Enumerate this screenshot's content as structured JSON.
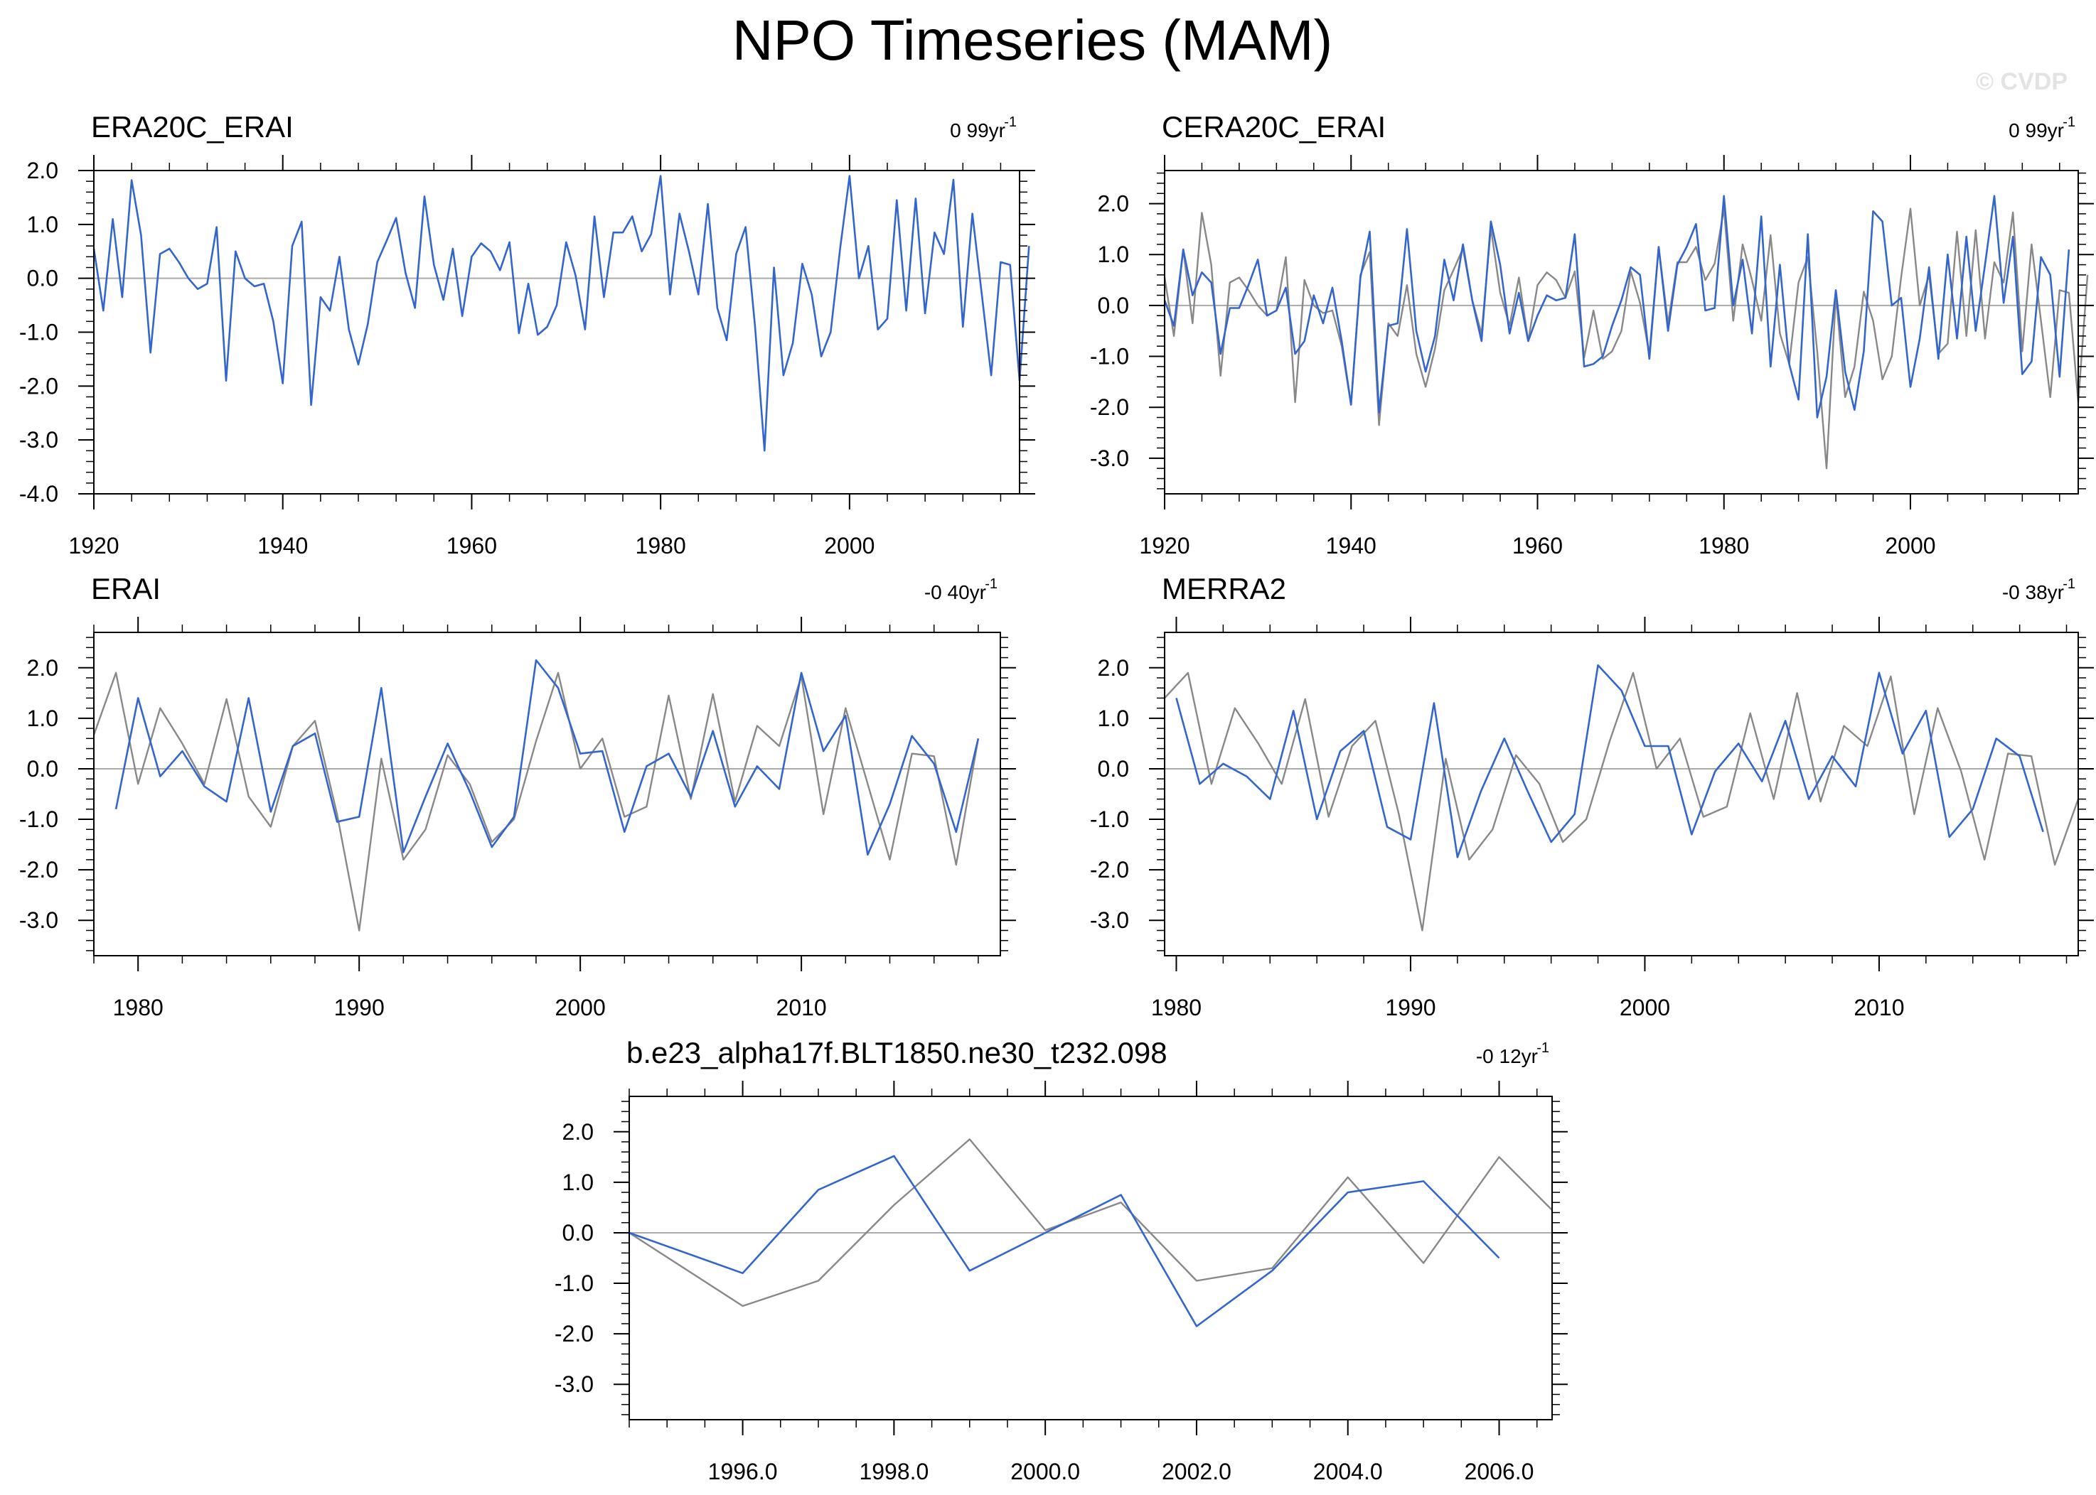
{
  "title": "NPO Timeseries (MAM)",
  "watermark": "© CVDP",
  "colors": {
    "model": "#3366cc",
    "obs": "#888888",
    "axis": "#000000",
    "zero_line": "#aaaaaa"
  },
  "chart_data": [
    {
      "type": "line",
      "title": "ERA20C_ERAI",
      "trend": "0 99yr",
      "trend_exp": "-1",
      "xlim": [
        1920,
        2018
      ],
      "ylim": [
        -4.0,
        2.0
      ],
      "xticks": [
        1920,
        1940,
        1960,
        1980,
        2000
      ],
      "xtick_labels": [
        "1920",
        "1940",
        "1960",
        "1980",
        "2000"
      ],
      "yticks": [
        -4.0,
        -3.0,
        -2.0,
        -1.0,
        0.0,
        1.0,
        2.0
      ],
      "ytick_labels": [
        "-4.0",
        "-3.0",
        "-2.0",
        "-1.0",
        "0.0",
        "1.0",
        "2.0"
      ],
      "series": [
        {
          "role": "model",
          "x0": 1920,
          "values": [
            0.55,
            -0.6,
            1.1,
            -0.35,
            1.82,
            0.8,
            -1.38,
            0.45,
            0.55,
            0.3,
            0.0,
            -0.2,
            -0.1,
            0.95,
            -1.9,
            0.5,
            0.0,
            -0.15,
            -0.1,
            -0.8,
            -1.95,
            0.6,
            1.05,
            -2.35,
            -0.35,
            -0.6,
            0.4,
            -0.95,
            -1.6,
            -0.85,
            0.3,
            0.7,
            1.12,
            0.1,
            -0.55,
            1.52,
            0.25,
            -0.4,
            0.55,
            -0.7,
            0.4,
            0.65,
            0.5,
            0.15,
            0.67,
            -1.02,
            -0.1,
            -1.05,
            -0.9,
            -0.5,
            0.67,
            0.05,
            -0.95,
            1.15,
            -0.35,
            0.85,
            0.85,
            1.15,
            0.5,
            0.82,
            1.9,
            -0.3,
            1.2,
            0.5,
            -0.3,
            1.38,
            -0.55,
            -1.15,
            0.45,
            0.95,
            -0.9,
            -3.2,
            0.2,
            -1.8,
            -1.2,
            0.27,
            -0.3,
            -1.45,
            -1.0,
            0.55,
            1.9,
            0.0,
            0.6,
            -0.95,
            -0.75,
            1.45,
            -0.6,
            1.48,
            -0.65,
            0.85,
            0.45,
            1.83,
            -0.9,
            1.2,
            -0.3,
            -1.8,
            0.3,
            0.25,
            -1.9,
            0.6
          ]
        }
      ]
    },
    {
      "type": "line",
      "title": "CERA20C_ERAI",
      "trend": "0 99yr",
      "trend_exp": "-1",
      "xlim": [
        1920,
        2018
      ],
      "ylim": [
        -3.7,
        2.65
      ],
      "xticks": [
        1920,
        1940,
        1960,
        1980,
        2000
      ],
      "xtick_labels": [
        "1920",
        "1940",
        "1960",
        "1980",
        "2000"
      ],
      "yticks": [
        -3.0,
        -2.0,
        -1.0,
        0.0,
        1.0,
        2.0
      ],
      "ytick_labels": [
        "-3.0",
        "-2.0",
        "-1.0",
        "0.0",
        "1.0",
        "2.0"
      ],
      "series": [
        {
          "role": "obs",
          "x0": 1920,
          "values": [
            0.55,
            -0.6,
            1.1,
            -0.35,
            1.82,
            0.8,
            -1.38,
            0.45,
            0.55,
            0.3,
            0.0,
            -0.2,
            -0.1,
            0.95,
            -1.9,
            0.5,
            0.0,
            -0.15,
            -0.1,
            -0.8,
            -1.95,
            0.6,
            1.05,
            -2.35,
            -0.35,
            -0.6,
            0.4,
            -0.95,
            -1.6,
            -0.85,
            0.3,
            0.7,
            1.12,
            0.1,
            -0.55,
            1.52,
            0.25,
            -0.4,
            0.55,
            -0.7,
            0.4,
            0.65,
            0.5,
            0.15,
            0.67,
            -1.02,
            -0.1,
            -1.05,
            -0.9,
            -0.5,
            0.67,
            0.05,
            -0.95,
            1.15,
            -0.35,
            0.85,
            0.85,
            1.15,
            0.5,
            0.82,
            1.9,
            -0.3,
            1.2,
            0.5,
            -0.3,
            1.38,
            -0.55,
            -1.15,
            0.45,
            0.95,
            -0.9,
            -3.2,
            0.2,
            -1.8,
            -1.2,
            0.27,
            -0.3,
            -1.45,
            -1.0,
            0.55,
            1.9,
            0.0,
            0.6,
            -0.95,
            -0.75,
            1.45,
            -0.6,
            1.48,
            -0.65,
            0.85,
            0.45,
            1.83,
            -0.9,
            1.2,
            -0.3,
            -1.8,
            0.3,
            0.25,
            -1.9,
            0.6
          ]
        },
        {
          "role": "model",
          "x0": 1920,
          "values": [
            0.1,
            -0.4,
            1.1,
            0.2,
            0.65,
            0.45,
            -0.95,
            -0.05,
            -0.05,
            0.4,
            0.9,
            -0.2,
            -0.1,
            0.35,
            -0.95,
            -0.7,
            0.2,
            -0.35,
            0.35,
            -0.7,
            -1.95,
            0.55,
            1.45,
            -2.1,
            -0.4,
            -0.35,
            1.5,
            -0.5,
            -1.3,
            -0.6,
            0.9,
            0.1,
            1.2,
            0.1,
            -0.7,
            1.65,
            0.8,
            -0.55,
            0.25,
            -0.7,
            -0.2,
            0.2,
            0.1,
            0.15,
            1.4,
            -1.2,
            -1.15,
            -1.0,
            -0.4,
            0.1,
            0.75,
            0.6,
            -1.05,
            1.15,
            -0.5,
            0.8,
            1.15,
            1.6,
            -0.1,
            -0.05,
            2.15,
            0.0,
            0.9,
            -0.55,
            1.75,
            -1.2,
            0.8,
            -1.15,
            -1.85,
            1.4,
            -2.2,
            -1.4,
            0.3,
            -1.3,
            -2.05,
            -0.9,
            1.85,
            1.65,
            0.0,
            0.15,
            -1.6,
            -0.65,
            0.75,
            -1.05,
            1.0,
            -0.65,
            1.35,
            -0.5,
            0.8,
            2.15,
            0.05,
            1.35,
            -1.35,
            -1.1,
            0.95,
            0.6,
            -1.4,
            1.1
          ]
        }
      ]
    },
    {
      "type": "line",
      "title": "ERAI",
      "trend": "-0 40yr",
      "trend_exp": "-1",
      "xlim": [
        1978,
        2019
      ],
      "ylim": [
        -3.7,
        2.7
      ],
      "xticks": [
        1980,
        1990,
        2000,
        2010
      ],
      "xtick_labels": [
        "1980",
        "1990",
        "2000",
        "2010"
      ],
      "yticks": [
        -3.0,
        -2.0,
        -1.0,
        0.0,
        1.0,
        2.0
      ],
      "ytick_labels": [
        "-3.0",
        "-2.0",
        "-1.0",
        "0.0",
        "1.0",
        "2.0"
      ],
      "series": [
        {
          "role": "obs",
          "x0": 1978,
          "values": [
            0.67,
            1.9,
            -0.3,
            1.2,
            0.5,
            -0.3,
            1.38,
            -0.55,
            -1.15,
            0.45,
            0.95,
            -0.9,
            -3.2,
            0.2,
            -1.8,
            -1.2,
            0.27,
            -0.3,
            -1.45,
            -1.0,
            0.55,
            1.9,
            0.0,
            0.6,
            -0.95,
            -0.75,
            1.45,
            -0.6,
            1.48,
            -0.65,
            0.85,
            0.45,
            1.83,
            -0.9,
            1.2,
            -0.3,
            -1.8,
            0.3,
            0.25,
            -1.9,
            0.6
          ],
          "x_start": 1978.0,
          "x_first_label": 1978.5
        },
        {
          "role": "model",
          "x0": 1979,
          "values": [
            -0.8,
            1.4,
            -0.15,
            0.35,
            -0.35,
            -0.65,
            1.4,
            -0.85,
            0.45,
            0.7,
            -1.05,
            -0.95,
            1.6,
            -1.65,
            -0.55,
            0.5,
            -0.45,
            -1.55,
            -0.95,
            2.15,
            1.6,
            0.3,
            0.35,
            -1.25,
            0.05,
            0.3,
            -0.55,
            0.75,
            -0.75,
            0.05,
            -0.4,
            1.9,
            0.35,
            1.05,
            -1.7,
            -0.7,
            0.65,
            0.1,
            -1.25,
            0.6
          ]
        }
      ]
    },
    {
      "type": "line",
      "title": "MERRA2",
      "trend": "-0 38yr",
      "trend_exp": "-1",
      "xlim": [
        1979.5,
        2018.5
      ],
      "ylim": [
        -3.7,
        2.7
      ],
      "xticks": [
        1980,
        1990,
        2000,
        2010
      ],
      "xtick_labels": [
        "1980",
        "1990",
        "2000",
        "2010"
      ],
      "yticks": [
        -3.0,
        -2.0,
        -1.0,
        0.0,
        1.0,
        2.0
      ],
      "ytick_labels": [
        "-3.0",
        "-2.0",
        "-1.0",
        "0.0",
        "1.0",
        "2.0"
      ],
      "series": [
        {
          "role": "obs",
          "x0": 1979.5,
          "values": [
            1.4,
            1.9,
            -0.3,
            1.2,
            0.5,
            -0.3,
            1.38,
            -0.95,
            0.45,
            0.95,
            -0.9,
            -3.2,
            0.2,
            -1.8,
            -1.2,
            0.27,
            -0.3,
            -1.45,
            -1.0,
            0.55,
            1.9,
            0.0,
            0.6,
            -0.95,
            -0.75,
            1.1,
            -0.6,
            1.5,
            -0.65,
            0.85,
            0.45,
            1.83,
            -0.9,
            1.2,
            -0.05,
            -1.8,
            0.3,
            0.25,
            -1.9,
            -0.6
          ]
        },
        {
          "role": "model",
          "x0": 1980,
          "values": [
            1.4,
            -0.3,
            0.1,
            -0.15,
            -0.6,
            1.15,
            -1.0,
            0.35,
            0.75,
            -1.15,
            -1.4,
            1.3,
            -1.75,
            -0.45,
            0.6,
            -0.45,
            -1.45,
            -0.9,
            2.05,
            1.55,
            0.45,
            0.45,
            -1.3,
            -0.05,
            0.5,
            -0.25,
            0.95,
            -0.6,
            0.25,
            -0.35,
            1.9,
            0.3,
            1.15,
            -1.35,
            -0.8,
            0.6,
            0.25,
            -1.25
          ]
        }
      ]
    },
    {
      "type": "line",
      "title": "b.e23_alpha17f.BLT1850.ne30_t232.098",
      "trend": "-0 12yr",
      "trend_exp": "-1",
      "xlim": [
        1994.5,
        2006.7
      ],
      "ylim": [
        -3.7,
        2.7
      ],
      "xticks": [
        1996,
        1998,
        2000,
        2002,
        2004,
        2006
      ],
      "xtick_labels": [
        "1996.0",
        "1998.0",
        "2000.0",
        "2002.0",
        "2004.0",
        "2006.0"
      ],
      "yticks": [
        -3.0,
        -2.0,
        -1.0,
        0.0,
        1.0,
        2.0
      ],
      "ytick_labels": [
        "-3.0",
        "-2.0",
        "-1.0",
        "0.0",
        "1.0",
        "2.0"
      ],
      "series": [
        {
          "role": "obs",
          "x0": 1994.5,
          "points": [
            [
              1994.5,
              0.0
            ],
            [
              1996.0,
              -1.45
            ],
            [
              1997.0,
              -0.95
            ],
            [
              1998.0,
              0.55
            ],
            [
              1999.0,
              1.85
            ],
            [
              2000.0,
              0.05
            ],
            [
              2001.0,
              0.6
            ],
            [
              2002.0,
              -0.95
            ],
            [
              2003.0,
              -0.7
            ],
            [
              2004.0,
              1.1
            ],
            [
              2005.0,
              -0.6
            ],
            [
              2006.0,
              1.5
            ],
            [
              2006.7,
              0.45
            ]
          ]
        },
        {
          "role": "model",
          "x0": 1994.5,
          "points": [
            [
              1994.5,
              0.0
            ],
            [
              1996.0,
              -0.8
            ],
            [
              1997.0,
              0.85
            ],
            [
              1998.0,
              1.52
            ],
            [
              1999.0,
              -0.75
            ],
            [
              2000.0,
              0.0
            ],
            [
              2001.0,
              0.75
            ],
            [
              2002.0,
              -1.85
            ],
            [
              2003.0,
              -0.75
            ],
            [
              2004.0,
              0.8
            ],
            [
              2005.0,
              1.02
            ],
            [
              2006.0,
              -0.5
            ]
          ]
        }
      ]
    }
  ]
}
